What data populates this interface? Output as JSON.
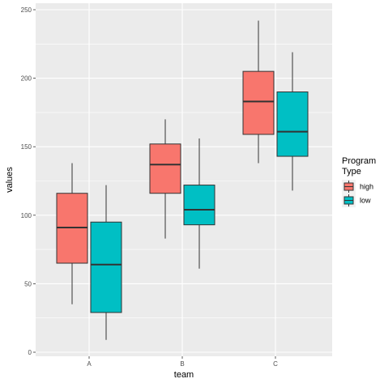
{
  "chart_data": {
    "type": "box",
    "title": "",
    "xlabel": "team",
    "ylabel": "values",
    "categories": [
      "A",
      "B",
      "C"
    ],
    "ylim": [
      0,
      250
    ],
    "yticks": [
      0,
      50,
      100,
      150,
      200,
      250
    ],
    "grid": true,
    "legend": {
      "title_lines": [
        "Program",
        "Type"
      ],
      "placement": "right"
    },
    "series": [
      {
        "name": "high",
        "color": "#F8766D",
        "boxes": [
          {
            "category": "A",
            "min": 35,
            "q1": 65,
            "median": 91,
            "q3": 116,
            "max": 138
          },
          {
            "category": "B",
            "min": 83,
            "q1": 116,
            "median": 137,
            "q3": 152,
            "max": 170
          },
          {
            "category": "C",
            "min": 138,
            "q1": 159,
            "median": 183,
            "q3": 205,
            "max": 242
          }
        ]
      },
      {
        "name": "low",
        "color": "#00BFC4",
        "boxes": [
          {
            "category": "A",
            "min": 9,
            "q1": 29,
            "median": 64,
            "q3": 95,
            "max": 122
          },
          {
            "category": "B",
            "min": 61,
            "q1": 93,
            "median": 104,
            "q3": 122,
            "max": 156
          },
          {
            "category": "C",
            "min": 118,
            "q1": 143,
            "median": 161,
            "q3": 190,
            "max": 219
          }
        ]
      }
    ],
    "colors": {
      "panel_background": "#EBEBEB",
      "grid": "#FFFFFF",
      "tick_text": "#4D4D4D"
    }
  }
}
